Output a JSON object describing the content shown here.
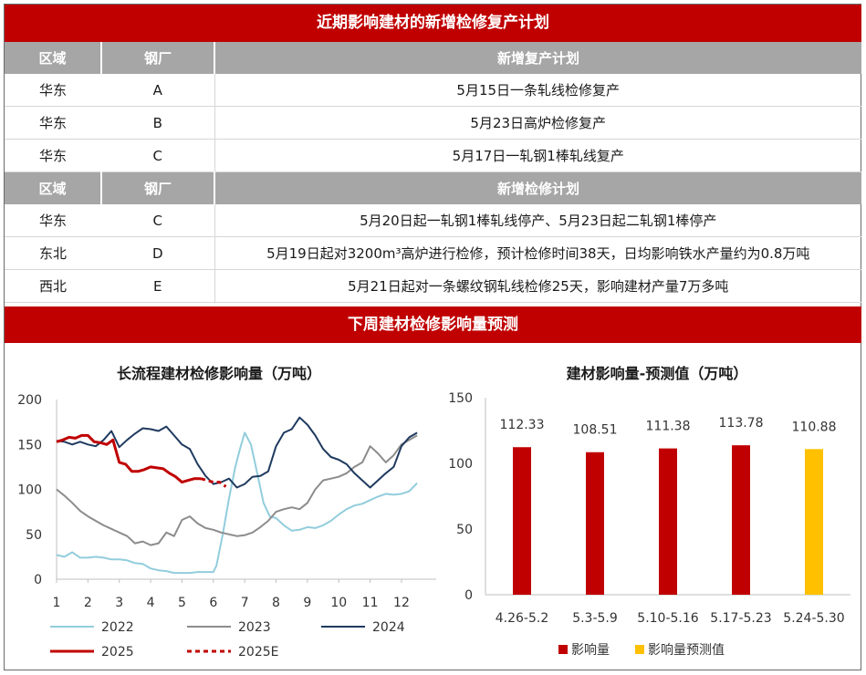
{
  "top_table": {
    "title": "近期影响建材的新增检修复产计划",
    "sections": [
      {
        "headers": [
          "区域",
          "钢厂",
          "新增复产计划"
        ],
        "rows": [
          [
            "华东",
            "A",
            "5月15日一条轧线检修复产"
          ],
          [
            "华东",
            "B",
            "5月23日高炉检修复产"
          ],
          [
            "华东",
            "C",
            "5月17日一轧钢1棒轧线复产"
          ]
        ]
      },
      {
        "headers": [
          "区域",
          "钢厂",
          "新增检修计划"
        ],
        "rows": [
          [
            "华东",
            "C",
            "5月20日起一轧钢1棒轧线停产、5月23日起二轧钢1棒停产"
          ],
          [
            "东北",
            "D",
            "5月19日起对3200m³高炉进行检修，预计检修时间38天，日均影响铁水产量约为0.8万吨"
          ],
          [
            "西北",
            "E",
            "5月21日起对一条螺纹钢轧线检修25天，影响建材产量7万多吨"
          ]
        ]
      }
    ]
  },
  "forecast_banner": "下周建材检修影响量预测",
  "chart_data": [
    {
      "type": "line",
      "title": "长流程建材检修影响量（万吨）",
      "x_ticks": [
        1,
        2,
        3,
        4,
        5,
        6,
        7,
        8,
        9,
        10,
        11,
        12
      ],
      "xlim": [
        1,
        12.7
      ],
      "ylim": [
        0,
        200
      ],
      "y_ticks": [
        0,
        50,
        100,
        150,
        200
      ],
      "grid": false,
      "legend_position": "bottom",
      "series": [
        {
          "name": "2022",
          "color": "#92cddc",
          "dash": false,
          "width": 2,
          "x": [
            1,
            1.25,
            1.5,
            1.75,
            2,
            2.25,
            2.5,
            2.75,
            3,
            3.25,
            3.5,
            3.75,
            4,
            4.25,
            4.5,
            4.75,
            5,
            5.25,
            5.5,
            5.75,
            6,
            6.1,
            6.3,
            6.5,
            6.7,
            6.85,
            7,
            7.2,
            7.4,
            7.6,
            7.8,
            8,
            8.25,
            8.5,
            8.75,
            9,
            9.25,
            9.5,
            9.75,
            10,
            10.25,
            10.5,
            10.75,
            11,
            11.25,
            11.5,
            11.75,
            12,
            12.25,
            12.5
          ],
          "y": [
            27,
            25,
            30,
            24,
            24,
            25,
            24,
            22,
            22,
            21,
            18,
            17,
            12,
            10,
            9,
            7,
            7,
            7,
            8,
            8,
            8,
            15,
            50,
            90,
            125,
            145,
            163,
            150,
            118,
            85,
            70,
            68,
            60,
            54,
            55,
            58,
            57,
            60,
            65,
            72,
            78,
            82,
            84,
            88,
            92,
            95,
            94,
            95,
            98,
            107
          ]
        },
        {
          "name": "2023",
          "color": "#8c8c8c",
          "dash": false,
          "width": 2,
          "x": [
            1,
            1.25,
            1.5,
            1.75,
            2,
            2.25,
            2.5,
            2.75,
            3,
            3.25,
            3.5,
            3.75,
            4,
            4.25,
            4.5,
            4.75,
            5,
            5.25,
            5.5,
            5.75,
            6,
            6.25,
            6.5,
            6.75,
            7,
            7.25,
            7.5,
            7.75,
            8,
            8.25,
            8.5,
            8.75,
            9,
            9.25,
            9.5,
            9.75,
            10,
            10.25,
            10.5,
            10.75,
            11,
            11.25,
            11.5,
            11.75,
            12,
            12.25,
            12.5
          ],
          "y": [
            100,
            93,
            85,
            76,
            70,
            65,
            60,
            56,
            52,
            48,
            40,
            42,
            38,
            40,
            52,
            48,
            66,
            70,
            62,
            57,
            55,
            52,
            50,
            48,
            49,
            52,
            58,
            65,
            75,
            78,
            80,
            78,
            85,
            100,
            110,
            112,
            114,
            118,
            125,
            130,
            148,
            140,
            130,
            138,
            150,
            155,
            160
          ]
        },
        {
          "name": "2024",
          "color": "#1f3a5f",
          "dash": false,
          "width": 2,
          "x": [
            1,
            1.25,
            1.5,
            1.75,
            2,
            2.25,
            2.5,
            2.75,
            3,
            3.25,
            3.5,
            3.75,
            4,
            4.25,
            4.5,
            4.75,
            5,
            5.25,
            5.5,
            5.75,
            6,
            6.25,
            6.5,
            6.75,
            7,
            7.25,
            7.5,
            7.75,
            8,
            8.25,
            8.5,
            8.75,
            9,
            9.25,
            9.5,
            9.75,
            10,
            10.25,
            10.5,
            10.75,
            11,
            11.25,
            11.5,
            11.75,
            12,
            12.25,
            12.5
          ],
          "y": [
            154,
            153,
            150,
            153,
            150,
            148,
            155,
            165,
            147,
            155,
            162,
            168,
            167,
            165,
            170,
            160,
            150,
            145,
            128,
            115,
            106,
            108,
            112,
            102,
            106,
            114,
            115,
            120,
            148,
            163,
            167,
            180,
            172,
            160,
            145,
            136,
            133,
            128,
            118,
            110,
            102,
            110,
            118,
            125,
            148,
            158,
            163
          ]
        },
        {
          "name": "2025",
          "color": "#c00000",
          "dash": false,
          "width": 3,
          "x": [
            1,
            1.2,
            1.4,
            1.6,
            1.8,
            2,
            2.2,
            2.4,
            2.6,
            2.8,
            3,
            3.2,
            3.4,
            3.6,
            3.8,
            4,
            4.2,
            4.4,
            4.6,
            4.8,
            5,
            5.2,
            5.4,
            5.6
          ],
          "y": [
            153,
            155,
            158,
            157,
            160,
            160,
            153,
            152,
            150,
            155,
            130,
            128,
            120,
            120,
            122,
            125,
            124,
            123,
            118,
            114,
            108,
            110,
            112,
            112
          ]
        },
        {
          "name": "2025E",
          "color": "#c00000",
          "dash": true,
          "width": 3,
          "x": [
            5.6,
            5.8,
            6,
            6.2,
            6.4
          ],
          "y": [
            112,
            110,
            108,
            108,
            103
          ]
        }
      ]
    },
    {
      "type": "bar",
      "title": "建材影响量-预测值（万吨）",
      "categories": [
        "4.26-5.2",
        "5.3-5.9",
        "5.10-5.16",
        "5.17-5.23",
        "5.24-5.30"
      ],
      "values": [
        112.33,
        108.51,
        111.38,
        113.78,
        110.88
      ],
      "labels": [
        "112.33",
        "108.51",
        "111.38",
        "113.78",
        "110.88"
      ],
      "kinds": [
        "影响量",
        "影响量",
        "影响量",
        "影响量",
        "影响量预测值"
      ],
      "ylim": [
        0,
        150
      ],
      "y_ticks": [
        0,
        50,
        100,
        150
      ],
      "grid": false,
      "legend_position": "bottom",
      "legend": [
        {
          "name": "影响量",
          "color": "#c00000"
        },
        {
          "name": "影响量预测值",
          "color": "#ffc000"
        }
      ]
    }
  ]
}
